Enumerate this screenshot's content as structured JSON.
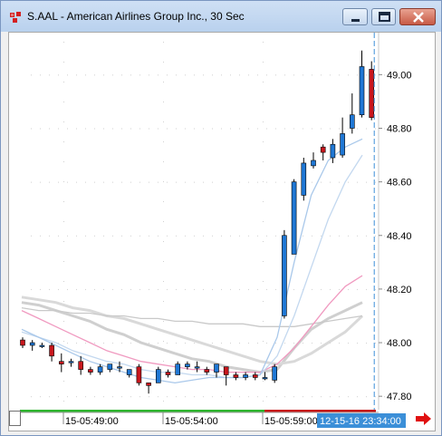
{
  "window": {
    "title": "S.AAL - American Airlines Group Inc., 30 Sec"
  },
  "colors": {
    "up_candle": "#1f77d4",
    "down_candle": "#c8161d",
    "cursor_line": "#3b8fd8",
    "timestamp_bg": "#3b8fd8",
    "scroll_arrow": "#e01010",
    "time_bar_green": "#2db52d",
    "time_bar_red": "#c81818"
  },
  "icons": [
    "app-chart-icon",
    "minimize-icon",
    "maximize-icon",
    "close-icon",
    "scroll-right-arrow-icon"
  ],
  "chart_data": {
    "type": "candlestick",
    "yticks": [
      49.0,
      48.8,
      48.6,
      48.4,
      48.2,
      48.0,
      47.8
    ],
    "ylim": [
      47.76,
      49.15
    ],
    "xtick_labels": [
      "15-05:49:00",
      "15-05:54:00",
      "15-05:59:00"
    ],
    "cursor_timestamp": "12-15-16 23:34:00",
    "candles": [
      {
        "o": 48.01,
        "h": 48.02,
        "l": 47.98,
        "c": 47.99
      },
      {
        "o": 47.99,
        "h": 48.01,
        "l": 47.97,
        "c": 48.0
      },
      {
        "o": 47.99,
        "h": 48.0,
        "l": 47.98,
        "c": 47.99
      },
      {
        "o": 47.99,
        "h": 48.0,
        "l": 47.93,
        "c": 47.95
      },
      {
        "o": 47.93,
        "h": 47.96,
        "l": 47.89,
        "c": 47.92
      },
      {
        "o": 47.93,
        "h": 47.94,
        "l": 47.91,
        "c": 47.93
      },
      {
        "o": 47.93,
        "h": 47.95,
        "l": 47.88,
        "c": 47.9
      },
      {
        "o": 47.9,
        "h": 47.91,
        "l": 47.88,
        "c": 47.89
      },
      {
        "o": 47.89,
        "h": 47.92,
        "l": 47.88,
        "c": 47.91
      },
      {
        "o": 47.9,
        "h": 47.92,
        "l": 47.89,
        "c": 47.92
      },
      {
        "o": 47.91,
        "h": 47.93,
        "l": 47.89,
        "c": 47.91
      },
      {
        "o": 47.88,
        "h": 47.9,
        "l": 47.87,
        "c": 47.9
      },
      {
        "o": 47.91,
        "h": 47.92,
        "l": 47.84,
        "c": 47.85
      },
      {
        "o": 47.85,
        "h": 47.85,
        "l": 47.81,
        "c": 47.84
      },
      {
        "o": 47.85,
        "h": 47.91,
        "l": 47.85,
        "c": 47.9
      },
      {
        "o": 47.89,
        "h": 47.9,
        "l": 47.87,
        "c": 47.88
      },
      {
        "o": 47.88,
        "h": 47.93,
        "l": 47.88,
        "c": 47.92
      },
      {
        "o": 47.91,
        "h": 47.93,
        "l": 47.9,
        "c": 47.92
      },
      {
        "o": 47.91,
        "h": 47.93,
        "l": 47.89,
        "c": 47.91
      },
      {
        "o": 47.9,
        "h": 47.91,
        "l": 47.88,
        "c": 47.89
      },
      {
        "o": 47.89,
        "h": 47.92,
        "l": 47.87,
        "c": 47.92
      },
      {
        "o": 47.91,
        "h": 47.91,
        "l": 47.84,
        "c": 47.88
      },
      {
        "o": 47.88,
        "h": 47.89,
        "l": 47.86,
        "c": 47.87
      },
      {
        "o": 47.87,
        "h": 47.89,
        "l": 47.86,
        "c": 47.88
      },
      {
        "o": 47.88,
        "h": 47.89,
        "l": 47.86,
        "c": 47.87
      },
      {
        "o": 47.87,
        "h": 47.89,
        "l": 47.86,
        "c": 47.87
      },
      {
        "o": 47.86,
        "h": 47.92,
        "l": 47.85,
        "c": 47.91
      },
      {
        "o": 48.1,
        "h": 48.42,
        "l": 48.09,
        "c": 48.4
      },
      {
        "o": 48.33,
        "h": 48.61,
        "l": 48.33,
        "c": 48.6
      },
      {
        "o": 48.55,
        "h": 48.69,
        "l": 48.53,
        "c": 48.67
      },
      {
        "o": 48.66,
        "h": 48.71,
        "l": 48.65,
        "c": 48.68
      },
      {
        "o": 48.73,
        "h": 48.74,
        "l": 48.68,
        "c": 48.71
      },
      {
        "o": 48.69,
        "h": 48.76,
        "l": 48.67,
        "c": 48.74
      },
      {
        "o": 48.7,
        "h": 48.84,
        "l": 48.69,
        "c": 48.78
      },
      {
        "o": 48.8,
        "h": 48.93,
        "l": 48.78,
        "c": 48.85
      },
      {
        "o": 48.85,
        "h": 49.09,
        "l": 48.84,
        "c": 49.03
      },
      {
        "o": 49.02,
        "h": 49.05,
        "l": 48.83,
        "c": 48.84
      }
    ],
    "moving_averages": [
      {
        "color": "#cfcfcf",
        "values": [
          48.15,
          48.14,
          48.12,
          48.1,
          48.08,
          48.05,
          48.03,
          48.0,
          47.98,
          47.96,
          47.94,
          47.93,
          47.91,
          47.9,
          47.89,
          47.9,
          47.98,
          48.05,
          48.09,
          48.12,
          48.15
        ]
      },
      {
        "color": "#d9d9d9",
        "values": [
          48.17,
          48.16,
          48.15,
          48.13,
          48.12,
          48.1,
          48.09,
          48.07,
          48.05,
          48.03,
          48.01,
          47.99,
          47.97,
          47.95,
          47.93,
          47.92,
          47.93,
          47.96,
          48.0,
          48.04,
          48.1
        ]
      },
      {
        "color": "#c9c9c9",
        "values": [
          48.13,
          48.12,
          48.12,
          48.11,
          48.11,
          48.1,
          48.1,
          48.09,
          48.09,
          48.08,
          48.08,
          48.07,
          48.07,
          48.07,
          48.06,
          48.06,
          48.06,
          48.07,
          48.08,
          48.09,
          48.1
        ]
      },
      {
        "color": "#f09ac0",
        "values": [
          48.12,
          48.09,
          48.06,
          48.03,
          48.0,
          47.97,
          47.95,
          47.93,
          47.92,
          47.91,
          47.9,
          47.9,
          47.89,
          47.89,
          47.89,
          47.92,
          47.98,
          48.06,
          48.14,
          48.21,
          48.25
        ]
      },
      {
        "color": "#c3d8ef",
        "values": [
          48.04,
          48.02,
          48.0,
          47.97,
          47.95,
          47.93,
          47.92,
          47.9,
          47.89,
          47.89,
          47.88,
          47.88,
          47.87,
          47.87,
          47.88,
          47.95,
          48.1,
          48.28,
          48.46,
          48.6,
          48.7
        ]
      },
      {
        "color": "#a9c8ea",
        "values": [
          48.05,
          48.02,
          47.99,
          47.96,
          47.93,
          47.91,
          47.89,
          47.87,
          47.86,
          47.85,
          47.86,
          47.87,
          47.87,
          47.87,
          47.88,
          48.02,
          48.3,
          48.55,
          48.68,
          48.73,
          48.76
        ]
      }
    ]
  }
}
